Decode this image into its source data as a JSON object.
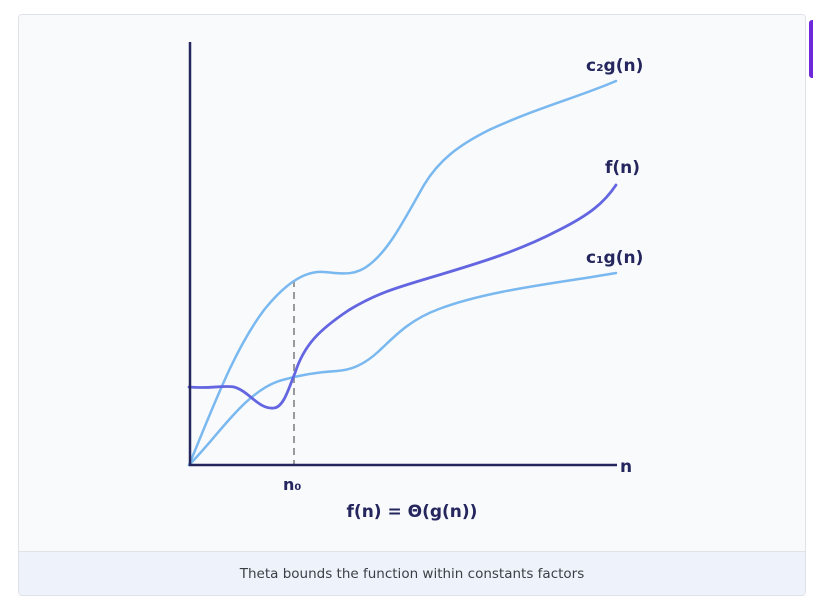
{
  "diagram": {
    "labels": {
      "upper_bound": "c₂g(n)",
      "function": "f(n)",
      "lower_bound": "c₁g(n)",
      "x_axis": "n",
      "threshold": "n₀",
      "equation": "f(n) = Θ(g(n))"
    },
    "colors": {
      "bounds": "#7ab8f0",
      "function": "#6366e0",
      "axes": "#25265e",
      "dashed": "#9a9a9a"
    }
  },
  "caption": "Theta bounds the function within constants factors"
}
